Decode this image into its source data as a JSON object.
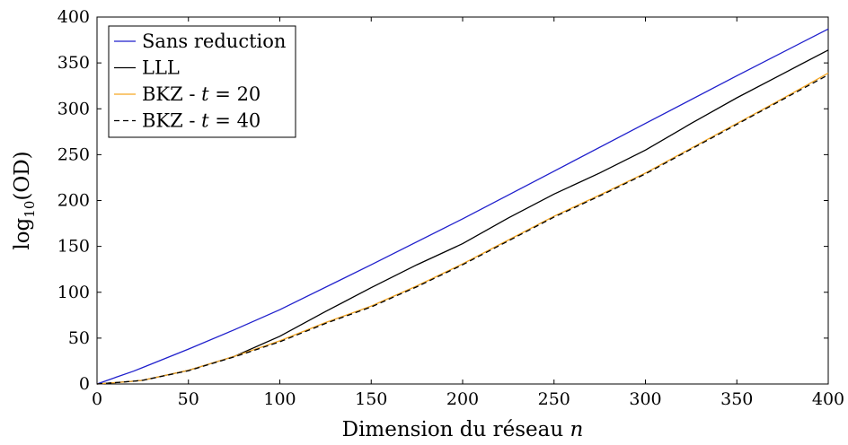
{
  "chart_data": {
    "type": "line",
    "xlabel": {
      "main": "Dimension du réseau ",
      "var": "n"
    },
    "ylabel": {
      "pre": "log",
      "sub": "10",
      "post": "(OD)"
    },
    "xlim": [
      0,
      400
    ],
    "ylim": [
      0,
      400
    ],
    "xticks": [
      0,
      50,
      100,
      150,
      200,
      250,
      300,
      350,
      400
    ],
    "yticks": [
      0,
      50,
      100,
      150,
      200,
      250,
      300,
      350,
      400
    ],
    "grid": false,
    "legend_position": "top-left",
    "series": [
      {
        "name": "Sans reduction",
        "label_parts": [
          "Sans reduction"
        ],
        "color": "#1f1fcc",
        "dash": "solid",
        "x": [
          0,
          10,
          20,
          25,
          50,
          75,
          100,
          150,
          200,
          250,
          300,
          350,
          400
        ],
        "y": [
          0,
          7,
          14,
          18,
          38,
          59,
          81,
          130,
          180,
          232,
          284,
          336,
          387
        ]
      },
      {
        "name": "LLL",
        "label_parts": [
          "LLL"
        ],
        "color": "#000000",
        "dash": "solid",
        "x": [
          0,
          10,
          20,
          25,
          50,
          75,
          100,
          125,
          150,
          175,
          200,
          225,
          250,
          275,
          300,
          325,
          350,
          375,
          400
        ],
        "y": [
          0,
          1.5,
          3,
          4,
          15,
          30,
          52,
          79,
          105,
          130,
          153,
          181,
          207,
          230,
          255,
          284,
          312,
          338,
          364
        ]
      },
      {
        "name": "BKZ - t = 20",
        "label_parts": [
          "BKZ - ",
          "t",
          " = 20"
        ],
        "color": "#f5a623",
        "dash": "solid",
        "x": [
          0,
          10,
          20,
          25,
          50,
          75,
          100,
          125,
          150,
          175,
          200,
          225,
          250,
          275,
          300,
          325,
          350,
          375,
          400
        ],
        "y": [
          0,
          1.5,
          3,
          4,
          15,
          30,
          47,
          67,
          85,
          107,
          131,
          157,
          183,
          206,
          230,
          257,
          284,
          311,
          339
        ]
      },
      {
        "name": "BKZ - t = 40",
        "label_parts": [
          "BKZ - ",
          "t",
          " = 40"
        ],
        "color": "#000000",
        "dash": "dashed",
        "x": [
          0,
          10,
          20,
          25,
          50,
          75,
          100,
          125,
          150,
          175,
          200,
          225,
          250,
          275,
          300,
          325,
          350,
          375,
          400
        ],
        "y": [
          0,
          1.5,
          3,
          4,
          14.5,
          29.5,
          46,
          66,
          84,
          106,
          130,
          156,
          182,
          205,
          229,
          256,
          283,
          310,
          337
        ]
      }
    ]
  }
}
